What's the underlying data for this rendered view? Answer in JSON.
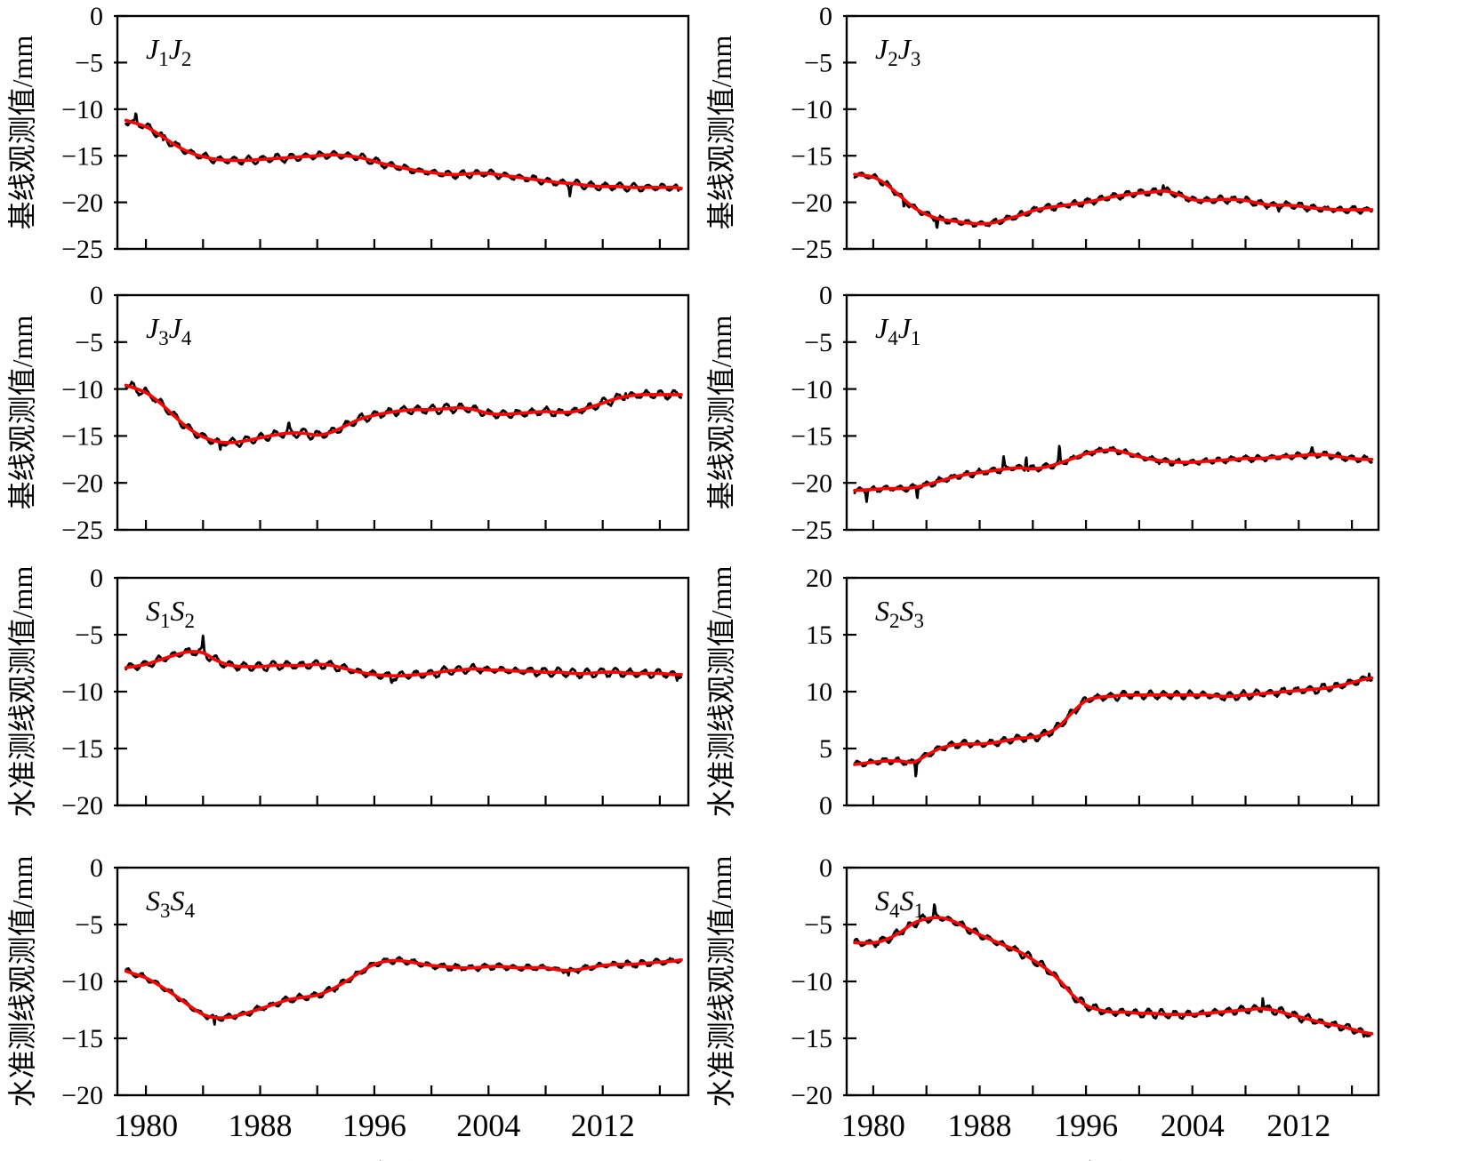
{
  "figure": {
    "xlabel": "年份",
    "x_tick_years": [
      1980,
      1984,
      1988,
      1992,
      1996,
      2000,
      2004,
      2008,
      2012,
      2016
    ],
    "x_labeled_years": [
      1980,
      1988,
      1996,
      2004,
      2012
    ],
    "x_range": [
      1978,
      2018
    ],
    "data_range": [
      1978.6,
      2017.5
    ],
    "colors": {
      "observed": "#000000",
      "trend": "#ff0000",
      "axis": "#000000",
      "background": "#ffffff"
    },
    "series_roles": [
      {
        "name": "observed",
        "description": "noisy black observation line"
      },
      {
        "name": "trend",
        "description": "smooth red fitted line"
      }
    ]
  },
  "chart_data": [
    {
      "type": "line",
      "panel": "J1J2",
      "label_text": "J₁J₂",
      "label_parts": [
        {
          "base": "J",
          "sub": "1"
        },
        {
          "base": "J",
          "sub": "2"
        }
      ],
      "ylabel": "基线观测值/mm",
      "ylim": [
        -25,
        0
      ],
      "yticks": [
        0,
        -5,
        -10,
        -15,
        -20,
        -25
      ],
      "trend_x": [
        1978.6,
        1980,
        1981,
        1982,
        1983,
        1984,
        1985,
        1986,
        1987,
        1988,
        1989,
        1990,
        1991,
        1992,
        1993,
        1994,
        1995,
        1996,
        1997,
        1998,
        1999,
        2000,
        2001,
        2002,
        2003,
        2004,
        2005,
        2006,
        2007,
        2008,
        2009,
        2010,
        2011,
        2012,
        2013,
        2014,
        2015,
        2016,
        2017,
        2017.5
      ],
      "trend_y": [
        -11.2,
        -11.9,
        -12.8,
        -13.8,
        -14.6,
        -15.1,
        -15.4,
        -15.5,
        -15.5,
        -15.4,
        -15.3,
        -15.2,
        -15.1,
        -15.0,
        -14.9,
        -15.0,
        -15.2,
        -15.6,
        -16.0,
        -16.3,
        -16.6,
        -16.8,
        -17.0,
        -17.0,
        -16.9,
        -16.9,
        -17.1,
        -17.3,
        -17.5,
        -17.7,
        -17.9,
        -18.0,
        -18.2,
        -18.3,
        -18.3,
        -18.4,
        -18.4,
        -18.4,
        -18.4,
        -18.5
      ],
      "noise": {
        "seasonal": 0.35,
        "jitter": 0.1,
        "seed": 11
      },
      "spikes": [
        {
          "t": 1979.3,
          "dv": 0.9
        },
        {
          "t": 1981.2,
          "dv": -0.7
        },
        {
          "t": 2009.7,
          "dv": -1.0
        },
        {
          "t": 2017.3,
          "dv": -0.5
        }
      ]
    },
    {
      "type": "line",
      "panel": "J2J3",
      "label_text": "J₂J₃",
      "label_parts": [
        {
          "base": "J",
          "sub": "2"
        },
        {
          "base": "J",
          "sub": "3"
        }
      ],
      "ylabel": "基线观测值/mm",
      "ylim": [
        -25,
        0
      ],
      "yticks": [
        0,
        -5,
        -10,
        -15,
        -20,
        -25
      ],
      "trend_x": [
        1978.6,
        1980,
        1981,
        1982,
        1983,
        1984,
        1985,
        1986,
        1987,
        1988,
        1989,
        1990,
        1991,
        1992,
        1993,
        1994,
        1995,
        1996,
        1997,
        1998,
        1999,
        2000,
        2001,
        2002,
        2003,
        2004,
        2005,
        2006,
        2007,
        2008,
        2009,
        2010,
        2011,
        2012,
        2013,
        2014,
        2015,
        2016,
        2017,
        2017.5
      ],
      "trend_y": [
        -17.0,
        -17.3,
        -18.1,
        -19.3,
        -20.5,
        -21.3,
        -21.8,
        -22.0,
        -22.2,
        -22.3,
        -22.2,
        -21.8,
        -21.4,
        -20.9,
        -20.6,
        -20.4,
        -20.2,
        -20.0,
        -19.7,
        -19.4,
        -19.2,
        -19.0,
        -18.9,
        -18.8,
        -19.2,
        -19.7,
        -19.8,
        -19.7,
        -19.7,
        -19.8,
        -20.1,
        -20.3,
        -20.3,
        -20.4,
        -20.6,
        -20.7,
        -20.8,
        -20.8,
        -20.8,
        -20.8
      ],
      "noise": {
        "seasonal": 0.28,
        "jitter": 0.14,
        "seed": 22
      },
      "spikes": [
        {
          "t": 1982.3,
          "dv": -0.9
        },
        {
          "t": 1984.8,
          "dv": -1.0
        },
        {
          "t": 2001.8,
          "dv": 0.7
        },
        {
          "t": 2010.5,
          "dv": -0.6
        }
      ]
    },
    {
      "type": "line",
      "panel": "J3J4",
      "label_text": "J₃J₄",
      "label_parts": [
        {
          "base": "J",
          "sub": "3"
        },
        {
          "base": "J",
          "sub": "4"
        }
      ],
      "ylabel": "基线观测值/mm",
      "ylim": [
        -25,
        0
      ],
      "yticks": [
        0,
        -5,
        -10,
        -15,
        -20,
        -25
      ],
      "trend_x": [
        1978.6,
        1980,
        1981,
        1982,
        1983,
        1984,
        1985,
        1986,
        1987,
        1988,
        1989,
        1990,
        1991,
        1992,
        1993,
        1994,
        1995,
        1996,
        1997,
        1998,
        1999,
        2000,
        2001,
        2002,
        2003,
        2004,
        2005,
        2006,
        2007,
        2008,
        2009,
        2010,
        2011,
        2012,
        2013,
        2014,
        2015,
        2016,
        2017,
        2017.5
      ],
      "trend_y": [
        -9.6,
        -10.4,
        -11.5,
        -12.9,
        -14.2,
        -15.1,
        -15.6,
        -15.7,
        -15.5,
        -15.2,
        -14.9,
        -14.7,
        -14.7,
        -14.9,
        -14.6,
        -13.9,
        -13.2,
        -12.8,
        -12.5,
        -12.3,
        -12.2,
        -12.2,
        -12.1,
        -12.0,
        -12.2,
        -12.6,
        -12.7,
        -12.6,
        -12.5,
        -12.4,
        -12.5,
        -12.4,
        -12.0,
        -11.5,
        -11.0,
        -10.7,
        -10.6,
        -10.6,
        -10.6,
        -10.6
      ],
      "noise": {
        "seasonal": 0.4,
        "jitter": 0.12,
        "seed": 33
      },
      "spikes": [
        {
          "t": 1985.2,
          "dv": -1.0
        },
        {
          "t": 1990.0,
          "dv": 0.8
        },
        {
          "t": 2013.6,
          "dv": 0.6
        }
      ]
    },
    {
      "type": "line",
      "panel": "J4J1",
      "label_text": "J₄J₁",
      "label_parts": [
        {
          "base": "J",
          "sub": "4"
        },
        {
          "base": "J",
          "sub": "1"
        }
      ],
      "ylabel": "基线观测值/mm",
      "ylim": [
        -25,
        0
      ],
      "yticks": [
        0,
        -5,
        -10,
        -15,
        -20,
        -25
      ],
      "trend_x": [
        1978.6,
        1980,
        1981,
        1982,
        1983,
        1984,
        1985,
        1986,
        1987,
        1988,
        1989,
        1990,
        1991,
        1992,
        1993,
        1994,
        1995,
        1996,
        1997,
        1998,
        1999,
        2000,
        2001,
        2002,
        2003,
        2004,
        2005,
        2006,
        2007,
        2008,
        2009,
        2010,
        2011,
        2012,
        2013,
        2014,
        2015,
        2016,
        2017,
        2017.5
      ],
      "trend_y": [
        -20.8,
        -20.7,
        -20.6,
        -20.6,
        -20.5,
        -20.2,
        -19.8,
        -19.4,
        -19.1,
        -18.9,
        -18.7,
        -18.5,
        -18.4,
        -18.5,
        -18.3,
        -17.9,
        -17.4,
        -16.9,
        -16.6,
        -16.5,
        -16.8,
        -17.2,
        -17.5,
        -17.7,
        -17.8,
        -17.8,
        -17.7,
        -17.6,
        -17.5,
        -17.4,
        -17.4,
        -17.3,
        -17.2,
        -17.1,
        -17.0,
        -17.0,
        -17.2,
        -17.4,
        -17.5,
        -17.5
      ],
      "noise": {
        "seasonal": 0.26,
        "jitter": 0.14,
        "seed": 44
      },
      "spikes": [
        {
          "t": 1979.5,
          "dv": -1.0
        },
        {
          "t": 1983.3,
          "dv": -1.1
        },
        {
          "t": 1989.8,
          "dv": 1.3
        },
        {
          "t": 1991.5,
          "dv": 1.5
        },
        {
          "t": 1994.0,
          "dv": 1.6
        },
        {
          "t": 2013.0,
          "dv": 0.5
        }
      ]
    },
    {
      "type": "line",
      "panel": "S1S2",
      "label_text": "S₁S₂",
      "label_parts": [
        {
          "base": "S",
          "sub": "1"
        },
        {
          "base": "S",
          "sub": "2"
        }
      ],
      "ylabel": "水准测线观测值/mm",
      "ylim": [
        -20,
        0
      ],
      "yticks": [
        0,
        -5,
        -10,
        -15,
        -20
      ],
      "trend_x": [
        1978.6,
        1980,
        1981,
        1982,
        1983,
        1984,
        1985,
        1986,
        1987,
        1988,
        1989,
        1990,
        1991,
        1992,
        1993,
        1994,
        1995,
        1996,
        1997,
        1998,
        1999,
        2000,
        2001,
        2002,
        2003,
        2004,
        2005,
        2006,
        2007,
        2008,
        2009,
        2010,
        2011,
        2012,
        2013,
        2014,
        2015,
        2016,
        2017,
        2017.5
      ],
      "trend_y": [
        -7.9,
        -7.6,
        -7.2,
        -6.8,
        -6.5,
        -6.6,
        -7.3,
        -7.7,
        -7.8,
        -7.8,
        -7.7,
        -7.7,
        -7.7,
        -7.6,
        -7.7,
        -8.0,
        -8.3,
        -8.5,
        -8.6,
        -8.6,
        -8.5,
        -8.4,
        -8.2,
        -8.1,
        -8.0,
        -8.1,
        -8.1,
        -8.2,
        -8.2,
        -8.3,
        -8.3,
        -8.4,
        -8.4,
        -8.3,
        -8.3,
        -8.4,
        -8.4,
        -8.4,
        -8.5,
        -8.5
      ],
      "noise": {
        "seasonal": 0.3,
        "jitter": 0.1,
        "seed": 55
      },
      "spikes": [
        {
          "t": 1984.0,
          "dv": 1.2
        },
        {
          "t": 1997.2,
          "dv": -0.5
        },
        {
          "t": 2017.2,
          "dv": -0.4
        }
      ]
    },
    {
      "type": "line",
      "panel": "S2S3",
      "label_text": "S₂S₃",
      "label_parts": [
        {
          "base": "S",
          "sub": "2"
        },
        {
          "base": "S",
          "sub": "3"
        }
      ],
      "ylabel": "水准测线观测值/mm",
      "ylim": [
        0,
        20
      ],
      "yticks": [
        20,
        15,
        10,
        5,
        0
      ],
      "trend_x": [
        1978.6,
        1980,
        1981,
        1982,
        1983,
        1984,
        1985,
        1986,
        1987,
        1988,
        1989,
        1990,
        1991,
        1992,
        1993,
        1994,
        1995,
        1996,
        1997,
        1998,
        1999,
        2000,
        2001,
        2002,
        2003,
        2004,
        2005,
        2006,
        2007,
        2008,
        2009,
        2010,
        2011,
        2012,
        2013,
        2014,
        2015,
        2016,
        2017,
        2017.5
      ],
      "trend_y": [
        3.6,
        3.8,
        3.9,
        3.9,
        3.8,
        4.4,
        5.0,
        5.3,
        5.4,
        5.4,
        5.5,
        5.7,
        5.9,
        6.0,
        6.3,
        7.0,
        8.2,
        9.2,
        9.5,
        9.6,
        9.7,
        9.7,
        9.7,
        9.7,
        9.7,
        9.7,
        9.7,
        9.6,
        9.6,
        9.7,
        9.8,
        9.9,
        10.0,
        10.1,
        10.2,
        10.3,
        10.5,
        10.8,
        11.1,
        11.2
      ],
      "noise": {
        "seasonal": 0.28,
        "jitter": 0.1,
        "seed": 66
      },
      "spikes": [
        {
          "t": 1983.2,
          "dv": -1.2
        },
        {
          "t": 2017.3,
          "dv": 0.7
        }
      ]
    },
    {
      "type": "line",
      "panel": "S3S4",
      "label_text": "S₃S₄",
      "label_parts": [
        {
          "base": "S",
          "sub": "3"
        },
        {
          "base": "S",
          "sub": "4"
        }
      ],
      "ylabel": "水准测线观测值/mm",
      "ylim": [
        -20,
        0
      ],
      "yticks": [
        0,
        -5,
        -10,
        -15,
        -20
      ],
      "trend_x": [
        1978.6,
        1980,
        1981,
        1982,
        1983,
        1984,
        1985,
        1986,
        1987,
        1988,
        1989,
        1990,
        1991,
        1992,
        1993,
        1994,
        1995,
        1996,
        1997,
        1998,
        1999,
        2000,
        2001,
        2002,
        2003,
        2004,
        2005,
        2006,
        2007,
        2008,
        2009,
        2010,
        2011,
        2012,
        2013,
        2014,
        2015,
        2016,
        2017,
        2017.5
      ],
      "trend_y": [
        -9.1,
        -9.7,
        -10.4,
        -11.2,
        -12.1,
        -12.9,
        -13.2,
        -13.1,
        -12.8,
        -12.4,
        -12.0,
        -11.6,
        -11.4,
        -11.2,
        -10.7,
        -10.0,
        -9.2,
        -8.5,
        -8.2,
        -8.2,
        -8.4,
        -8.6,
        -8.7,
        -8.8,
        -8.8,
        -8.7,
        -8.7,
        -8.8,
        -8.8,
        -8.8,
        -9.0,
        -9.0,
        -8.8,
        -8.6,
        -8.5,
        -8.5,
        -8.4,
        -8.3,
        -8.2,
        -8.1
      ],
      "noise": {
        "seasonal": 0.22,
        "jitter": 0.09,
        "seed": 77
      },
      "spikes": [
        {
          "t": 1984.8,
          "dv": -0.8
        },
        {
          "t": 2009.6,
          "dv": -0.6
        }
      ]
    },
    {
      "type": "line",
      "panel": "S4S1",
      "label_text": "S₄S₁",
      "label_parts": [
        {
          "base": "S",
          "sub": "4"
        },
        {
          "base": "S",
          "sub": "1"
        }
      ],
      "ylabel": "水准测线观测值/mm",
      "ylim": [
        -20,
        0
      ],
      "yticks": [
        0,
        -5,
        -10,
        -15,
        -20
      ],
      "trend_x": [
        1978.6,
        1980,
        1981,
        1982,
        1983,
        1984,
        1985,
        1986,
        1987,
        1988,
        1989,
        1990,
        1991,
        1992,
        1993,
        1994,
        1995,
        1996,
        1997,
        1998,
        1999,
        2000,
        2001,
        2002,
        2003,
        2004,
        2005,
        2006,
        2007,
        2008,
        2009,
        2010,
        2011,
        2012,
        2013,
        2014,
        2015,
        2016,
        2017,
        2017.5
      ],
      "trend_y": [
        -6.6,
        -6.6,
        -6.3,
        -5.7,
        -4.9,
        -4.5,
        -4.4,
        -4.7,
        -5.3,
        -5.9,
        -6.4,
        -6.9,
        -7.4,
        -8.1,
        -8.9,
        -9.9,
        -11.2,
        -12.1,
        -12.5,
        -12.7,
        -12.7,
        -12.8,
        -12.8,
        -12.9,
        -12.9,
        -12.9,
        -12.8,
        -12.7,
        -12.6,
        -12.5,
        -12.4,
        -12.5,
        -12.8,
        -13.1,
        -13.4,
        -13.7,
        -13.9,
        -14.2,
        -14.5,
        -14.6
      ],
      "noise": {
        "seasonal": 0.3,
        "jitter": 0.1,
        "seed": 88
      },
      "spikes": [
        {
          "t": 1984.6,
          "dv": 1.0
        },
        {
          "t": 2009.3,
          "dv": 1.2
        },
        {
          "t": 2016.9,
          "dv": -0.5
        }
      ]
    }
  ]
}
